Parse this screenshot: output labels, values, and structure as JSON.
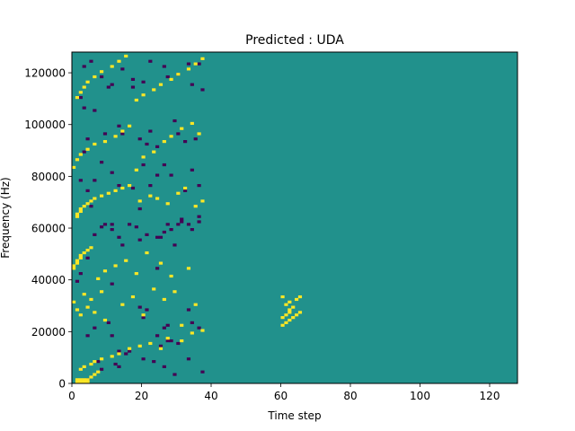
{
  "chart_data": {
    "type": "heatmap",
    "title": "Predicted : UDA",
    "xlabel": "Time step",
    "ylabel": "Frequency (Hz)",
    "xlim": [
      0,
      128
    ],
    "ylim": [
      0,
      128000
    ],
    "xticks": [
      0,
      20,
      40,
      60,
      80,
      100,
      120
    ],
    "yticks": [
      0,
      20000,
      40000,
      60000,
      80000,
      100000,
      120000
    ],
    "n_time_steps": 128,
    "n_frequency_bins": 128,
    "bin_width_hz": 1000,
    "value_range": [
      -1,
      1
    ],
    "colormap": {
      "-1": "#440154",
      "0": "#21918c",
      "1": "#fde725"
    },
    "background_value": 0,
    "cells_negative": [
      [
        4,
        1
      ],
      [
        7,
        8
      ],
      [
        8,
        5
      ],
      [
        13,
        6
      ],
      [
        15,
        11
      ],
      [
        12,
        7
      ],
      [
        16,
        12
      ],
      [
        20,
        9
      ],
      [
        23,
        8
      ],
      [
        24,
        18
      ],
      [
        25,
        14
      ],
      [
        26,
        6
      ],
      [
        29,
        3
      ],
      [
        28,
        16
      ],
      [
        30,
        15
      ],
      [
        33,
        9
      ],
      [
        37,
        4
      ],
      [
        4,
        18
      ],
      [
        6,
        21
      ],
      [
        10,
        23
      ],
      [
        13,
        12
      ],
      [
        11,
        18
      ],
      [
        11,
        38
      ],
      [
        19,
        29
      ],
      [
        20,
        25
      ],
      [
        21,
        28
      ],
      [
        26,
        21
      ],
      [
        27,
        22
      ],
      [
        27,
        16
      ],
      [
        33,
        28
      ],
      [
        34,
        23
      ],
      [
        36,
        21
      ],
      [
        2,
        42
      ],
      [
        1,
        39
      ],
      [
        4,
        48
      ],
      [
        6,
        57
      ],
      [
        8,
        60
      ],
      [
        11,
        61
      ],
      [
        13,
        56
      ],
      [
        16,
        61
      ],
      [
        19,
        55
      ],
      [
        24,
        44
      ],
      [
        24,
        56
      ],
      [
        26,
        58
      ],
      [
        28,
        59
      ],
      [
        30,
        61
      ],
      [
        31,
        63
      ],
      [
        33,
        61
      ],
      [
        36,
        64
      ],
      [
        2,
        78
      ],
      [
        4,
        74
      ],
      [
        5,
        68
      ],
      [
        9,
        61
      ],
      [
        11,
        59
      ],
      [
        14,
        53
      ],
      [
        18,
        60
      ],
      [
        21,
        57
      ],
      [
        25,
        56
      ],
      [
        27,
        61
      ],
      [
        29,
        53
      ],
      [
        31,
        62
      ],
      [
        34,
        59
      ],
      [
        36,
        62
      ],
      [
        3,
        89
      ],
      [
        4,
        94
      ],
      [
        6,
        78
      ],
      [
        8,
        85
      ],
      [
        11,
        81
      ],
      [
        13,
        76
      ],
      [
        17,
        75
      ],
      [
        19,
        67
      ],
      [
        20,
        84
      ],
      [
        22,
        76
      ],
      [
        24,
        80
      ],
      [
        26,
        84
      ],
      [
        28,
        80
      ],
      [
        32,
        74
      ],
      [
        34,
        82
      ],
      [
        36,
        76
      ],
      [
        2,
        110
      ],
      [
        3,
        106
      ],
      [
        6,
        105
      ],
      [
        9,
        96
      ],
      [
        10,
        114
      ],
      [
        13,
        99
      ],
      [
        14,
        96
      ],
      [
        17,
        114
      ],
      [
        19,
        94
      ],
      [
        21,
        92
      ],
      [
        22,
        97
      ],
      [
        24,
        91
      ],
      [
        29,
        101
      ],
      [
        30,
        96
      ],
      [
        32,
        93
      ],
      [
        35,
        94
      ],
      [
        37,
        113
      ],
      [
        3,
        122
      ],
      [
        5,
        124
      ],
      [
        8,
        118
      ],
      [
        11,
        115
      ],
      [
        14,
        121
      ],
      [
        17,
        117
      ],
      [
        20,
        116
      ],
      [
        22,
        124
      ],
      [
        26,
        122
      ],
      [
        27,
        118
      ],
      [
        30,
        119
      ],
      [
        33,
        123
      ],
      [
        34,
        115
      ],
      [
        36,
        123
      ]
    ],
    "cells_positive": [
      [
        1,
        0
      ],
      [
        2,
        0
      ],
      [
        3,
        0
      ],
      [
        4,
        0
      ],
      [
        1,
        1
      ],
      [
        2,
        1
      ],
      [
        3,
        1
      ],
      [
        4,
        1
      ],
      [
        5,
        2
      ],
      [
        6,
        3
      ],
      [
        7,
        4
      ],
      [
        2,
        5
      ],
      [
        3,
        6
      ],
      [
        5,
        7
      ],
      [
        6,
        8
      ],
      [
        8,
        9
      ],
      [
        11,
        10
      ],
      [
        13,
        11
      ],
      [
        16,
        13
      ],
      [
        19,
        14
      ],
      [
        22,
        15
      ],
      [
        25,
        13
      ],
      [
        27,
        17
      ],
      [
        31,
        16
      ],
      [
        34,
        19
      ],
      [
        37,
        20
      ],
      [
        0,
        31
      ],
      [
        1,
        28
      ],
      [
        2,
        26
      ],
      [
        3,
        34
      ],
      [
        4,
        29
      ],
      [
        5,
        32
      ],
      [
        6,
        27
      ],
      [
        8,
        35
      ],
      [
        9,
        24
      ],
      [
        14,
        30
      ],
      [
        17,
        33
      ],
      [
        20,
        26
      ],
      [
        23,
        36
      ],
      [
        26,
        32
      ],
      [
        29,
        35
      ],
      [
        31,
        22
      ],
      [
        35,
        30
      ],
      [
        0,
        44
      ],
      [
        0,
        45
      ],
      [
        1,
        46
      ],
      [
        1,
        47
      ],
      [
        2,
        48
      ],
      [
        2,
        49
      ],
      [
        3,
        50
      ],
      [
        4,
        51
      ],
      [
        5,
        52
      ],
      [
        7,
        40
      ],
      [
        9,
        43
      ],
      [
        12,
        45
      ],
      [
        15,
        47
      ],
      [
        18,
        42
      ],
      [
        21,
        50
      ],
      [
        25,
        46
      ],
      [
        28,
        41
      ],
      [
        33,
        44
      ],
      [
        1,
        64
      ],
      [
        1,
        65
      ],
      [
        2,
        66
      ],
      [
        2,
        67
      ],
      [
        3,
        68
      ],
      [
        4,
        69
      ],
      [
        5,
        70
      ],
      [
        6,
        71
      ],
      [
        8,
        72
      ],
      [
        10,
        73
      ],
      [
        12,
        74
      ],
      [
        14,
        75
      ],
      [
        16,
        76
      ],
      [
        19,
        70
      ],
      [
        22,
        72
      ],
      [
        24,
        71
      ],
      [
        27,
        69
      ],
      [
        30,
        73
      ],
      [
        32,
        75
      ],
      [
        35,
        68
      ],
      [
        37,
        70
      ],
      [
        0,
        83
      ],
      [
        1,
        86
      ],
      [
        2,
        88
      ],
      [
        4,
        90
      ],
      [
        6,
        92
      ],
      [
        9,
        93
      ],
      [
        12,
        95
      ],
      [
        14,
        97
      ],
      [
        16,
        99
      ],
      [
        18,
        82
      ],
      [
        20,
        87
      ],
      [
        23,
        89
      ],
      [
        26,
        93
      ],
      [
        28,
        95
      ],
      [
        31,
        98
      ],
      [
        34,
        100
      ],
      [
        36,
        96
      ],
      [
        1,
        110
      ],
      [
        2,
        112
      ],
      [
        3,
        114
      ],
      [
        4,
        116
      ],
      [
        6,
        118
      ],
      [
        8,
        120
      ],
      [
        11,
        122
      ],
      [
        13,
        124
      ],
      [
        15,
        126
      ],
      [
        18,
        109
      ],
      [
        20,
        111
      ],
      [
        23,
        113
      ],
      [
        25,
        115
      ],
      [
        28,
        117
      ],
      [
        30,
        119
      ],
      [
        33,
        121
      ],
      [
        35,
        123
      ],
      [
        37,
        125
      ],
      [
        60,
        22
      ],
      [
        61,
        23
      ],
      [
        62,
        24
      ],
      [
        60,
        25
      ],
      [
        61,
        26
      ],
      [
        62,
        27
      ],
      [
        63,
        25
      ],
      [
        64,
        26
      ],
      [
        65,
        27
      ],
      [
        62,
        28
      ],
      [
        63,
        29
      ],
      [
        61,
        30
      ],
      [
        62,
        31
      ],
      [
        64,
        32
      ],
      [
        65,
        33
      ],
      [
        60,
        33
      ]
    ]
  }
}
